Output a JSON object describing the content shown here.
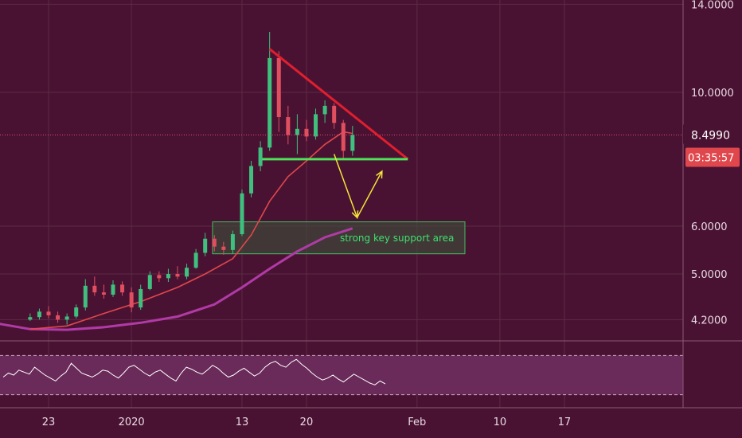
{
  "chart_data": {
    "type": "candlestick",
    "title": "",
    "price_axis": {
      "scale": "log",
      "ticks": [
        "14.0000",
        "10.0000",
        "6.0000",
        "5.0000",
        "4.2000"
      ],
      "tick_values": [
        14.0,
        10.0,
        6.0,
        5.0,
        4.2
      ]
    },
    "time_axis": {
      "ticks": [
        "23",
        "2020",
        "13",
        "20",
        "Feb",
        "10",
        "17"
      ],
      "tick_days": [
        0,
        9,
        21,
        28,
        40,
        49,
        56
      ]
    },
    "current_price": "8.4990",
    "countdown": "03:35:57",
    "annotation_label": "strong key support area",
    "support_zone": {
      "low": 5.4,
      "high": 6.1,
      "x_start_day": 17.8,
      "x_end_day": 45.2
    },
    "support_line": {
      "price": 7.75,
      "x_start_day": 23.2,
      "x_end_day": 39.0
    },
    "resistance_line": {
      "from": {
        "day": 24.0,
        "price": 11.8
      },
      "to": {
        "day": 39.0,
        "price": 7.75
      }
    },
    "projection_path": [
      {
        "day": 31.0,
        "price": 7.9
      },
      {
        "day": 33.5,
        "price": 6.2
      },
      {
        "day": 36.2,
        "price": 7.4
      }
    ],
    "candles": [
      {
        "day": -2.0,
        "o": 4.2,
        "h": 4.3,
        "l": 4.18,
        "c": 4.24
      },
      {
        "day": -1.0,
        "o": 4.24,
        "h": 4.38,
        "l": 4.2,
        "c": 4.33
      },
      {
        "day": 0.0,
        "o": 4.33,
        "h": 4.42,
        "l": 4.22,
        "c": 4.27
      },
      {
        "day": 1.0,
        "o": 4.27,
        "h": 4.33,
        "l": 4.15,
        "c": 4.2
      },
      {
        "day": 2.0,
        "o": 4.2,
        "h": 4.3,
        "l": 4.12,
        "c": 4.25
      },
      {
        "day": 3.0,
        "o": 4.25,
        "h": 4.45,
        "l": 4.22,
        "c": 4.4
      },
      {
        "day": 4.0,
        "o": 4.4,
        "h": 4.9,
        "l": 4.35,
        "c": 4.78
      },
      {
        "day": 5.0,
        "o": 4.78,
        "h": 4.95,
        "l": 4.6,
        "c": 4.66
      },
      {
        "day": 6.0,
        "o": 4.66,
        "h": 4.8,
        "l": 4.55,
        "c": 4.62
      },
      {
        "day": 7.0,
        "o": 4.62,
        "h": 4.88,
        "l": 4.58,
        "c": 4.8
      },
      {
        "day": 8.0,
        "o": 4.8,
        "h": 4.86,
        "l": 4.6,
        "c": 4.66
      },
      {
        "day": 9.0,
        "o": 4.66,
        "h": 4.75,
        "l": 4.32,
        "c": 4.4
      },
      {
        "day": 10.0,
        "o": 4.4,
        "h": 4.8,
        "l": 4.36,
        "c": 4.72
      },
      {
        "day": 11.0,
        "o": 4.72,
        "h": 5.05,
        "l": 4.7,
        "c": 4.98
      },
      {
        "day": 12.0,
        "o": 4.98,
        "h": 5.05,
        "l": 4.85,
        "c": 4.92
      },
      {
        "day": 13.0,
        "o": 4.92,
        "h": 5.1,
        "l": 4.85,
        "c": 5.0
      },
      {
        "day": 14.0,
        "o": 5.0,
        "h": 5.15,
        "l": 4.9,
        "c": 4.95
      },
      {
        "day": 15.0,
        "o": 4.95,
        "h": 5.2,
        "l": 4.9,
        "c": 5.12
      },
      {
        "day": 16.0,
        "o": 5.12,
        "h": 5.5,
        "l": 5.1,
        "c": 5.42
      },
      {
        "day": 17.0,
        "o": 5.42,
        "h": 5.85,
        "l": 5.35,
        "c": 5.72
      },
      {
        "day": 18.0,
        "o": 5.72,
        "h": 5.8,
        "l": 5.45,
        "c": 5.55
      },
      {
        "day": 19.0,
        "o": 5.55,
        "h": 5.65,
        "l": 5.38,
        "c": 5.48
      },
      {
        "day": 20.0,
        "o": 5.48,
        "h": 5.9,
        "l": 5.4,
        "c": 5.82
      },
      {
        "day": 21.0,
        "o": 5.82,
        "h": 6.9,
        "l": 5.78,
        "c": 6.8
      },
      {
        "day": 22.0,
        "o": 6.8,
        "h": 7.7,
        "l": 6.7,
        "c": 7.55
      },
      {
        "day": 23.0,
        "o": 7.55,
        "h": 8.3,
        "l": 7.4,
        "c": 8.1
      },
      {
        "day": 24.0,
        "o": 8.1,
        "h": 12.6,
        "l": 8.0,
        "c": 11.4
      },
      {
        "day": 25.0,
        "o": 11.4,
        "h": 11.7,
        "l": 8.6,
        "c": 9.1
      },
      {
        "day": 26.0,
        "o": 9.1,
        "h": 9.5,
        "l": 8.2,
        "c": 8.5
      },
      {
        "day": 27.0,
        "o": 8.5,
        "h": 9.2,
        "l": 7.9,
        "c": 8.7
      },
      {
        "day": 28.0,
        "o": 8.7,
        "h": 9.0,
        "l": 8.3,
        "c": 8.45
      },
      {
        "day": 29.0,
        "o": 8.45,
        "h": 9.4,
        "l": 8.35,
        "c": 9.2
      },
      {
        "day": 30.0,
        "o": 9.2,
        "h": 9.7,
        "l": 8.9,
        "c": 9.5
      },
      {
        "day": 31.0,
        "o": 9.5,
        "h": 9.6,
        "l": 8.7,
        "c": 8.9
      },
      {
        "day": 32.0,
        "o": 8.9,
        "h": 9.0,
        "l": 7.75,
        "c": 8.0
      },
      {
        "day": 33.0,
        "o": 8.0,
        "h": 8.8,
        "l": 7.85,
        "c": 8.5
      }
    ],
    "ema_red": [
      {
        "day": -2,
        "v": 4.05
      },
      {
        "day": 2,
        "v": 4.1
      },
      {
        "day": 6,
        "v": 4.3
      },
      {
        "day": 10,
        "v": 4.5
      },
      {
        "day": 14,
        "v": 4.75
      },
      {
        "day": 17,
        "v": 5.0
      },
      {
        "day": 20,
        "v": 5.3
      },
      {
        "day": 22,
        "v": 5.8
      },
      {
        "day": 24,
        "v": 6.6
      },
      {
        "day": 26,
        "v": 7.25
      },
      {
        "day": 28,
        "v": 7.7
      },
      {
        "day": 30,
        "v": 8.2
      },
      {
        "day": 32,
        "v": 8.6
      },
      {
        "day": 33,
        "v": 8.55
      }
    ],
    "ema_purple": [
      {
        "day": -6,
        "v": 4.15
      },
      {
        "day": -2,
        "v": 4.05
      },
      {
        "day": 2,
        "v": 4.04
      },
      {
        "day": 6,
        "v": 4.08
      },
      {
        "day": 10,
        "v": 4.15
      },
      {
        "day": 14,
        "v": 4.25
      },
      {
        "day": 18,
        "v": 4.45
      },
      {
        "day": 21,
        "v": 4.75
      },
      {
        "day": 24,
        "v": 5.1
      },
      {
        "day": 27,
        "v": 5.45
      },
      {
        "day": 30,
        "v": 5.75
      },
      {
        "day": 33,
        "v": 5.95
      }
    ],
    "rsi": [
      48,
      52,
      50,
      55,
      53,
      51,
      58,
      54,
      50,
      47,
      44,
      49,
      53,
      62,
      57,
      52,
      50,
      48,
      51,
      55,
      54,
      50,
      47,
      52,
      58,
      60,
      56,
      52,
      49,
      53,
      55,
      51,
      47,
      44,
      52,
      58,
      56,
      53,
      51,
      55,
      60,
      57,
      52,
      48,
      50,
      54,
      57,
      53,
      49,
      52,
      58,
      62,
      64,
      60,
      58,
      63,
      66,
      61,
      57,
      52,
      48,
      45,
      47,
      50,
      46,
      43,
      47,
      51,
      48,
      45,
      42,
      40,
      44,
      41
    ]
  }
}
